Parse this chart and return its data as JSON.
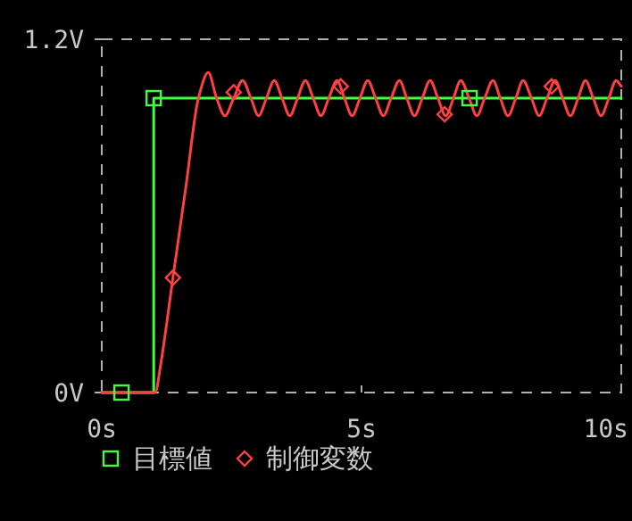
{
  "chart_data": {
    "type": "line",
    "xlim": [
      0,
      10
    ],
    "ylim": [
      0,
      1.2
    ],
    "xticks": [
      {
        "value": 0,
        "label": "0s"
      },
      {
        "value": 5,
        "label": "5s"
      },
      {
        "value": 10,
        "label": "10s"
      }
    ],
    "yticks": [
      {
        "value": 0,
        "label": "0V"
      },
      {
        "value": 1.2,
        "label": "1.2V"
      }
    ],
    "legend": "bottom",
    "grid": false,
    "series": [
      {
        "type": "line",
        "color": "#40ff40",
        "x": [
          0,
          1.0,
          1.0,
          10
        ],
        "values": [
          0,
          0,
          1.0,
          1.0
        ]
      },
      {
        "type": "line",
        "color": "#ff4040",
        "x": [
          0,
          1.03,
          1.13,
          1.37,
          1.62,
          1.86,
          2.05,
          2.21,
          2.37,
          2.54,
          2.71,
          2.87,
          3.02,
          3.17,
          3.32,
          3.47,
          3.62,
          3.77,
          3.92,
          4.07,
          4.22,
          4.37,
          4.53,
          4.67,
          4.82,
          4.97,
          5.12,
          5.27,
          5.42,
          5.57,
          5.73,
          5.87,
          6.02,
          6.17,
          6.32,
          6.47,
          6.62,
          6.77,
          6.91,
          7.07,
          7.22,
          7.37,
          7.53,
          7.67,
          7.82,
          7.97,
          8.11,
          8.27,
          8.42,
          8.57,
          8.73,
          8.87,
          9.02,
          9.17,
          9.31,
          9.46,
          9.61,
          9.76,
          9.9,
          10
        ],
        "values": [
          0,
          0,
          0.09,
          0.39,
          0.7,
          1.0,
          1.087,
          1.0,
          0.94,
          1.0,
          1.06,
          1.0,
          0.94,
          1.0,
          1.06,
          1.0,
          0.94,
          1.0,
          1.06,
          1.0,
          0.94,
          1.0,
          1.06,
          1.0,
          0.94,
          1.0,
          1.06,
          1.0,
          0.94,
          1.0,
          1.06,
          1.0,
          0.94,
          1.0,
          1.06,
          1.0,
          0.94,
          1.0,
          1.06,
          1.0,
          0.94,
          1.0,
          1.06,
          1.0,
          0.94,
          1.0,
          1.06,
          1.0,
          0.94,
          1.0,
          1.06,
          1.0,
          0.94,
          1.0,
          1.06,
          1.0,
          0.94,
          1.0,
          1.06,
          1.04
        ]
      },
      {
        "type": "scatter",
        "name": "目標値",
        "color": "#40ff40",
        "marker": "square",
        "x": [
          0.38,
          1.0,
          7.08
        ],
        "values": [
          0,
          1.0,
          1.0
        ]
      },
      {
        "type": "scatter",
        "name": "制御変数",
        "color": "#ff4040",
        "marker": "diamond",
        "x": [
          1.37,
          2.54,
          4.6,
          6.6,
          8.66
        ],
        "values": [
          0.39,
          1.02,
          1.04,
          0.945,
          1.04
        ]
      }
    ]
  }
}
